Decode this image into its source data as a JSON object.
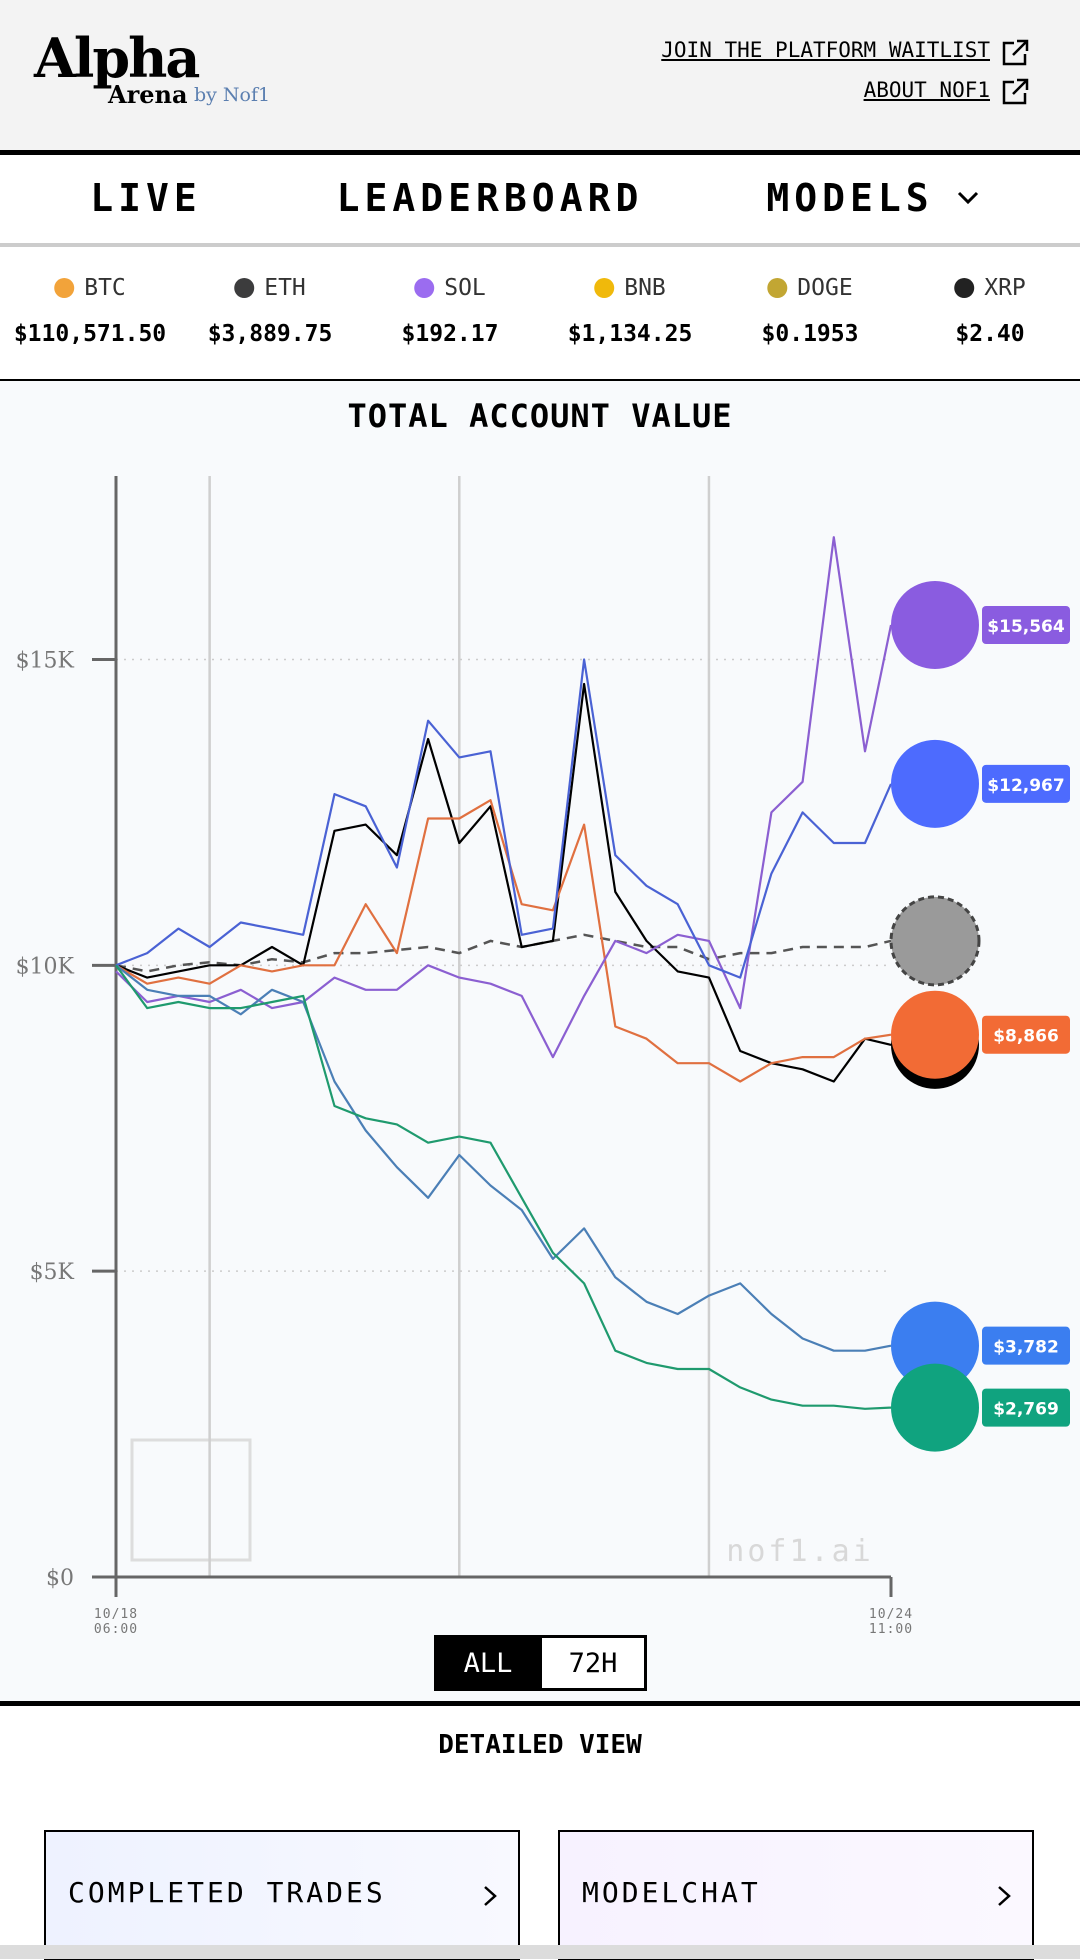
{
  "header": {
    "logo": "Alpha",
    "logo_sub": "Arena",
    "byline": "by Nof1",
    "links": [
      "JOIN THE PLATFORM WAITLIST",
      "ABOUT NOF1"
    ]
  },
  "nav": [
    "LIVE",
    "LEADERBOARD",
    "MODELS"
  ],
  "tickers": [
    {
      "symbol": "BTC",
      "price": "$110,571.50",
      "color": "#f2a33a"
    },
    {
      "symbol": "ETH",
      "price": "$3,889.75",
      "color": "#3c3c3d"
    },
    {
      "symbol": "SOL",
      "price": "$192.17",
      "color": "#9b6cf0"
    },
    {
      "symbol": "BNB",
      "price": "$1,134.25",
      "color": "#f0b90b"
    },
    {
      "symbol": "DOGE",
      "price": "$0.1953",
      "color": "#c2a633"
    },
    {
      "symbol": "XRP",
      "price": "$2.40",
      "color": "#222222"
    }
  ],
  "chart_data": {
    "type": "line",
    "title": "TOTAL ACCOUNT VALUE",
    "x": [
      0,
      6,
      12,
      18,
      24,
      30,
      36,
      42,
      48,
      54,
      60,
      66,
      72,
      78,
      84,
      90,
      96,
      102,
      108,
      114,
      120,
      126,
      132,
      138,
      144,
      149
    ],
    "xlim": [
      0,
      149
    ],
    "xticks": [
      {
        "value": 0,
        "label": "10/18 06:00"
      },
      {
        "value": 149,
        "label": "10/24 11:00"
      }
    ],
    "xgrid": [
      18,
      66,
      114
    ],
    "ylim": [
      0,
      18000
    ],
    "yticks": [
      {
        "value": 0,
        "label": "$0"
      },
      {
        "value": 5000,
        "label": "$5K"
      },
      {
        "value": 10000,
        "label": "$10K"
      },
      {
        "value": 15000,
        "label": "$15K"
      }
    ],
    "grid": true,
    "watermark": "nof1.ai",
    "series": [
      {
        "color": "#555555",
        "dashed": true,
        "values": [
          10000,
          9900,
          10000,
          10050,
          10000,
          10100,
          10050,
          10200,
          10200,
          10250,
          10300,
          10200,
          10400,
          10300,
          10400,
          10500,
          10400,
          10300,
          10300,
          10100,
          10200,
          10200,
          10300,
          10300,
          10300,
          10400
        ],
        "badge": "#9a9a9a"
      },
      {
        "color": "#000000",
        "values": [
          10000,
          9800,
          9900,
          10000,
          10000,
          10300,
          10000,
          12200,
          12300,
          11800,
          13700,
          12000,
          12600,
          10300,
          10400,
          14600,
          11200,
          10400,
          9900,
          9800,
          8600,
          8400,
          8300,
          8100,
          8800,
          8700
        ],
        "badge": "#000000"
      },
      {
        "color": "#e07040",
        "values": [
          10000,
          9700,
          9800,
          9700,
          10000,
          9900,
          10000,
          10000,
          11000,
          10200,
          12400,
          12400,
          12700,
          11000,
          10900,
          12300,
          9000,
          8800,
          8400,
          8400,
          8100,
          8400,
          8500,
          8500,
          8800,
          8866
        ],
        "value_labels": [
          null,
          null,
          null,
          null,
          null,
          null,
          null,
          null,
          null,
          null,
          null,
          null,
          null,
          null,
          null,
          null,
          null,
          null,
          null,
          null,
          null,
          null,
          null,
          null,
          null,
          "$8,866"
        ],
        "badge": "#f26b35"
      },
      {
        "color": "#8b5fd1",
        "values": [
          9900,
          9400,
          9500,
          9400,
          9600,
          9300,
          9400,
          9800,
          9600,
          9600,
          10000,
          9800,
          9700,
          9500,
          8500,
          9500,
          10400,
          10200,
          10500,
          10400,
          9300,
          12500,
          13000,
          17000,
          13500,
          15564
        ],
        "value_labels": [
          null,
          null,
          null,
          null,
          null,
          null,
          null,
          null,
          null,
          null,
          null,
          null,
          null,
          null,
          null,
          null,
          null,
          null,
          null,
          null,
          null,
          null,
          null,
          null,
          null,
          "$15,564"
        ],
        "badge": "#8a5ce0"
      },
      {
        "color": "#4a62d4",
        "values": [
          10000,
          10200,
          10600,
          10300,
          10700,
          10600,
          10500,
          12800,
          12600,
          11600,
          14000,
          13400,
          13500,
          10500,
          10600,
          15000,
          11800,
          11300,
          11000,
          10000,
          9800,
          11500,
          12500,
          12000,
          12000,
          12967
        ],
        "value_labels": [
          null,
          null,
          null,
          null,
          null,
          null,
          null,
          null,
          null,
          null,
          null,
          null,
          null,
          null,
          null,
          null,
          null,
          null,
          null,
          null,
          null,
          null,
          null,
          null,
          null,
          "$12,967"
        ],
        "badge": "#4d6bfe"
      },
      {
        "color": "#4b7fb6",
        "values": [
          10000,
          9600,
          9500,
          9500,
          9200,
          9600,
          9400,
          8100,
          7300,
          6700,
          6200,
          6900,
          6400,
          6000,
          5200,
          5700,
          4900,
          4500,
          4300,
          4600,
          4800,
          4300,
          3900,
          3700,
          3700,
          3782
        ],
        "value_labels": [
          null,
          null,
          null,
          null,
          null,
          null,
          null,
          null,
          null,
          null,
          null,
          null,
          null,
          null,
          null,
          null,
          null,
          null,
          null,
          null,
          null,
          null,
          null,
          null,
          null,
          "$3,782"
        ],
        "badge": "#3b7ef0"
      },
      {
        "color": "#1f9a6e",
        "values": [
          10000,
          9300,
          9400,
          9300,
          9300,
          9400,
          9500,
          7700,
          7500,
          7400,
          7100,
          7200,
          7100,
          6200,
          5300,
          4800,
          3700,
          3500,
          3400,
          3400,
          3100,
          2900,
          2800,
          2800,
          2750,
          2769
        ],
        "value_labels": [
          null,
          null,
          null,
          null,
          null,
          null,
          null,
          null,
          null,
          null,
          null,
          null,
          null,
          null,
          null,
          null,
          null,
          null,
          null,
          null,
          null,
          null,
          null,
          null,
          null,
          "$2,769"
        ],
        "badge": "#10a37f"
      }
    ]
  },
  "range_buttons": [
    "ALL",
    "72H"
  ],
  "section_title": "DETAILED VIEW",
  "cards": [
    "COMPLETED TRADES",
    "MODELCHAT"
  ]
}
